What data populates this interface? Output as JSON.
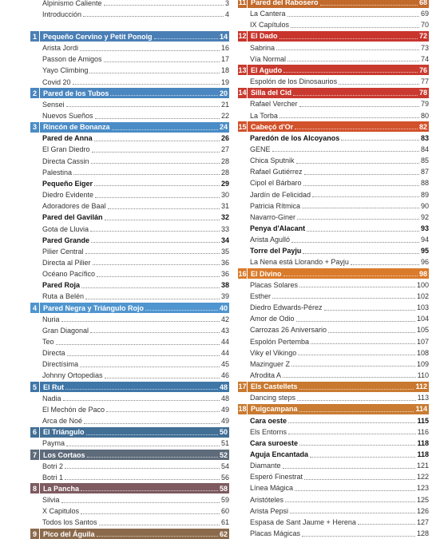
{
  "columns": [
    {
      "intro": [
        {
          "title": "Alpinismo Caliente",
          "page": 3
        },
        {
          "title": "Introducción",
          "page": 4
        }
      ],
      "sections": [
        {
          "number": 1,
          "title": "Pequeño Cervino y Petit Ponoig",
          "page": 14,
          "color": "#4a7fb5",
          "entries": [
            {
              "title": "Arista Jordi",
              "page": 16
            },
            {
              "title": "Passon de Amigos",
              "page": 17
            },
            {
              "title": "Yayo Climbing",
              "page": 18
            },
            {
              "title": "Covid 20",
              "page": 19
            }
          ]
        },
        {
          "number": 2,
          "title": "Pared de los Tubos",
          "page": 20,
          "color": "#4a86bf",
          "entries": [
            {
              "title": "Sensei",
              "page": 21
            },
            {
              "title": "Nuevos Sueños",
              "page": 22
            }
          ]
        },
        {
          "number": 3,
          "title": "Rincón de Bonanza",
          "page": 24,
          "color": "#4a8cc6",
          "entries": [
            {
              "title": "Pared de Anna",
              "page": 26,
              "bold": true
            },
            {
              "title": "El Gran Diedro",
              "page": 27
            },
            {
              "title": "Directa Cassin",
              "page": 28
            },
            {
              "title": "Palestina",
              "page": 28
            },
            {
              "title": "Pequeño Eiger",
              "page": 29,
              "bold": true
            },
            {
              "title": "Diedro Evidente",
              "page": 30
            },
            {
              "title": "Adoradores de Baal",
              "page": 31
            },
            {
              "title": "Pared del Gavilán",
              "page": 32,
              "bold": true
            },
            {
              "title": "Gota de Lluvia",
              "page": 33
            },
            {
              "title": "Pared Grande",
              "page": 34,
              "bold": true
            },
            {
              "title": "Pilier Central",
              "page": 35
            },
            {
              "title": "Directa al Pilier",
              "page": 36
            },
            {
              "title": "Océano Pacífico",
              "page": 36
            },
            {
              "title": "Pared Roja",
              "page": 38,
              "bold": true
            },
            {
              "title": "Ruta a Belén",
              "page": 39
            }
          ]
        },
        {
          "number": 4,
          "title": "Pared Negra y Triángulo Rojo",
          "page": 40,
          "color": "#4f95cf",
          "entries": [
            {
              "title": "Nuria",
              "page": 42
            },
            {
              "title": "Gran Diagonal",
              "page": 43
            },
            {
              "title": "Teo",
              "page": 44
            },
            {
              "title": "Directa",
              "page": 44
            },
            {
              "title": "Directísima",
              "page": 45
            },
            {
              "title": "Johnny Ortopedias",
              "page": 46
            }
          ]
        },
        {
          "number": 5,
          "title": "El Rut",
          "page": 48,
          "color": "#3f76a8",
          "entries": [
            {
              "title": "Nadia",
              "page": 48
            },
            {
              "title": "El Mechón de Paco",
              "page": 49
            },
            {
              "title": "Arca de Noé",
              "page": 49
            }
          ]
        },
        {
          "number": 6,
          "title": "El Triángulo",
          "page": 50,
          "color": "#426f96",
          "entries": [
            {
              "title": "Payma",
              "page": 51
            }
          ]
        },
        {
          "number": 7,
          "title": "Los Cortaos",
          "page": 52,
          "color": "#5e6b7a",
          "entries": [
            {
              "title": "Botri 2",
              "page": 54
            },
            {
              "title": "Botri 1",
              "page": 56
            }
          ]
        },
        {
          "number": 8,
          "title": "La Pancha",
          "page": 58,
          "color": "#7d5b60",
          "entries": [
            {
              "title": "Silvia",
              "page": 59
            },
            {
              "title": "X Capitulos",
              "page": 60
            },
            {
              "title": "Todos los Santos",
              "page": 61
            }
          ]
        },
        {
          "number": 9,
          "title": "Pico del Águila",
          "page": 62,
          "color": "#8b6a4c",
          "entries": []
        }
      ]
    },
    {
      "sections": [
        {
          "number": 11,
          "title": "Pared del Rabosero",
          "page": 68,
          "color": "#c26a2c",
          "entries": [
            {
              "title": "La Cantera",
              "page": 69
            },
            {
              "title": "IX Capítulos",
              "page": 70
            }
          ]
        },
        {
          "number": 12,
          "title": "El Dado",
          "page": 72,
          "color": "#c8352d",
          "entries": [
            {
              "title": "Sabrina",
              "page": 73
            },
            {
              "title": "Vía Normal",
              "page": 74
            }
          ]
        },
        {
          "number": 13,
          "title": "El Agudo",
          "page": 76,
          "color": "#c93a2e",
          "entries": [
            {
              "title": "Espolón de los Dinosaurios",
              "page": 77
            }
          ]
        },
        {
          "number": 14,
          "title": "Silla del Cid",
          "page": 78,
          "color": "#c9392f",
          "entries": [
            {
              "title": "Rafael Vercher",
              "page": 79
            },
            {
              "title": "La Torba",
              "page": 80
            }
          ]
        },
        {
          "number": 15,
          "title": "Cabeçó d'Or",
          "page": 82,
          "color": "#d2522b",
          "entries": [
            {
              "title": "Paredón de los Alcoyanos",
              "page": 83,
              "bold": true
            },
            {
              "title": "GENE",
              "page": 84
            },
            {
              "title": "Chica Sputnik",
              "page": 85
            },
            {
              "title": "Rafael Gutiérrez",
              "page": 87
            },
            {
              "title": "Cipol el Bárbaro",
              "page": 88
            },
            {
              "title": "Jardín de Felicidad",
              "page": 89
            },
            {
              "title": "Patricia Rítmica",
              "page": 90
            },
            {
              "title": "Navarro-Giner",
              "page": 92
            },
            {
              "title": "Penya d'Alacant",
              "page": 93,
              "bold": true
            },
            {
              "title": "Arista Agulló",
              "page": 94
            },
            {
              "title": "Torre del Payju",
              "page": 95,
              "bold": true
            },
            {
              "title": "La Nena está Llorando + Payju",
              "page": 96
            }
          ]
        },
        {
          "number": 16,
          "title": "El Divino",
          "page": 98,
          "color": "#da7a2b",
          "entries": [
            {
              "title": "Placas Solares",
              "page": 100
            },
            {
              "title": "Esther",
              "page": 102
            },
            {
              "title": "Diedro Edwards-Pérez",
              "page": 103
            },
            {
              "title": "Amor de Odio",
              "page": 104
            },
            {
              "title": "Carrozas 26 Aniversario",
              "page": 105
            },
            {
              "title": "Espolón Pertemba",
              "page": 107
            },
            {
              "title": "Viky el Vikingo",
              "page": 108
            },
            {
              "title": "Mazinguer Z",
              "page": 109
            },
            {
              "title": "Afrodita A",
              "page": 110
            }
          ]
        },
        {
          "number": 17,
          "title": "Els Castellets",
          "page": 112,
          "color": "#c9792f",
          "entries": [
            {
              "title": "Dancing steps",
              "page": 113
            }
          ]
        },
        {
          "number": 18,
          "title": "Puigcampana",
          "page": 114,
          "color": "#c97b31",
          "entries": [
            {
              "title": "Cara oeste",
              "page": 115,
              "bold": true
            },
            {
              "title": "Els Entorns",
              "page": 116
            },
            {
              "title": "Cara suroeste",
              "page": 118,
              "bold": true
            },
            {
              "title": "Aguja Encantada",
              "page": 118,
              "bold": true
            },
            {
              "title": "Diamante",
              "page": 121
            },
            {
              "title": "Esperó Finestrat",
              "page": 122
            },
            {
              "title": "Línea Mágica",
              "page": 123
            },
            {
              "title": "Aristóteles",
              "page": 125
            },
            {
              "title": "Arista Pepsi",
              "page": 126
            },
            {
              "title": "Espasa de Sant Jaume + Herena",
              "page": 127
            },
            {
              "title": "Placas Mágicas",
              "page": 128
            }
          ]
        }
      ]
    }
  ]
}
